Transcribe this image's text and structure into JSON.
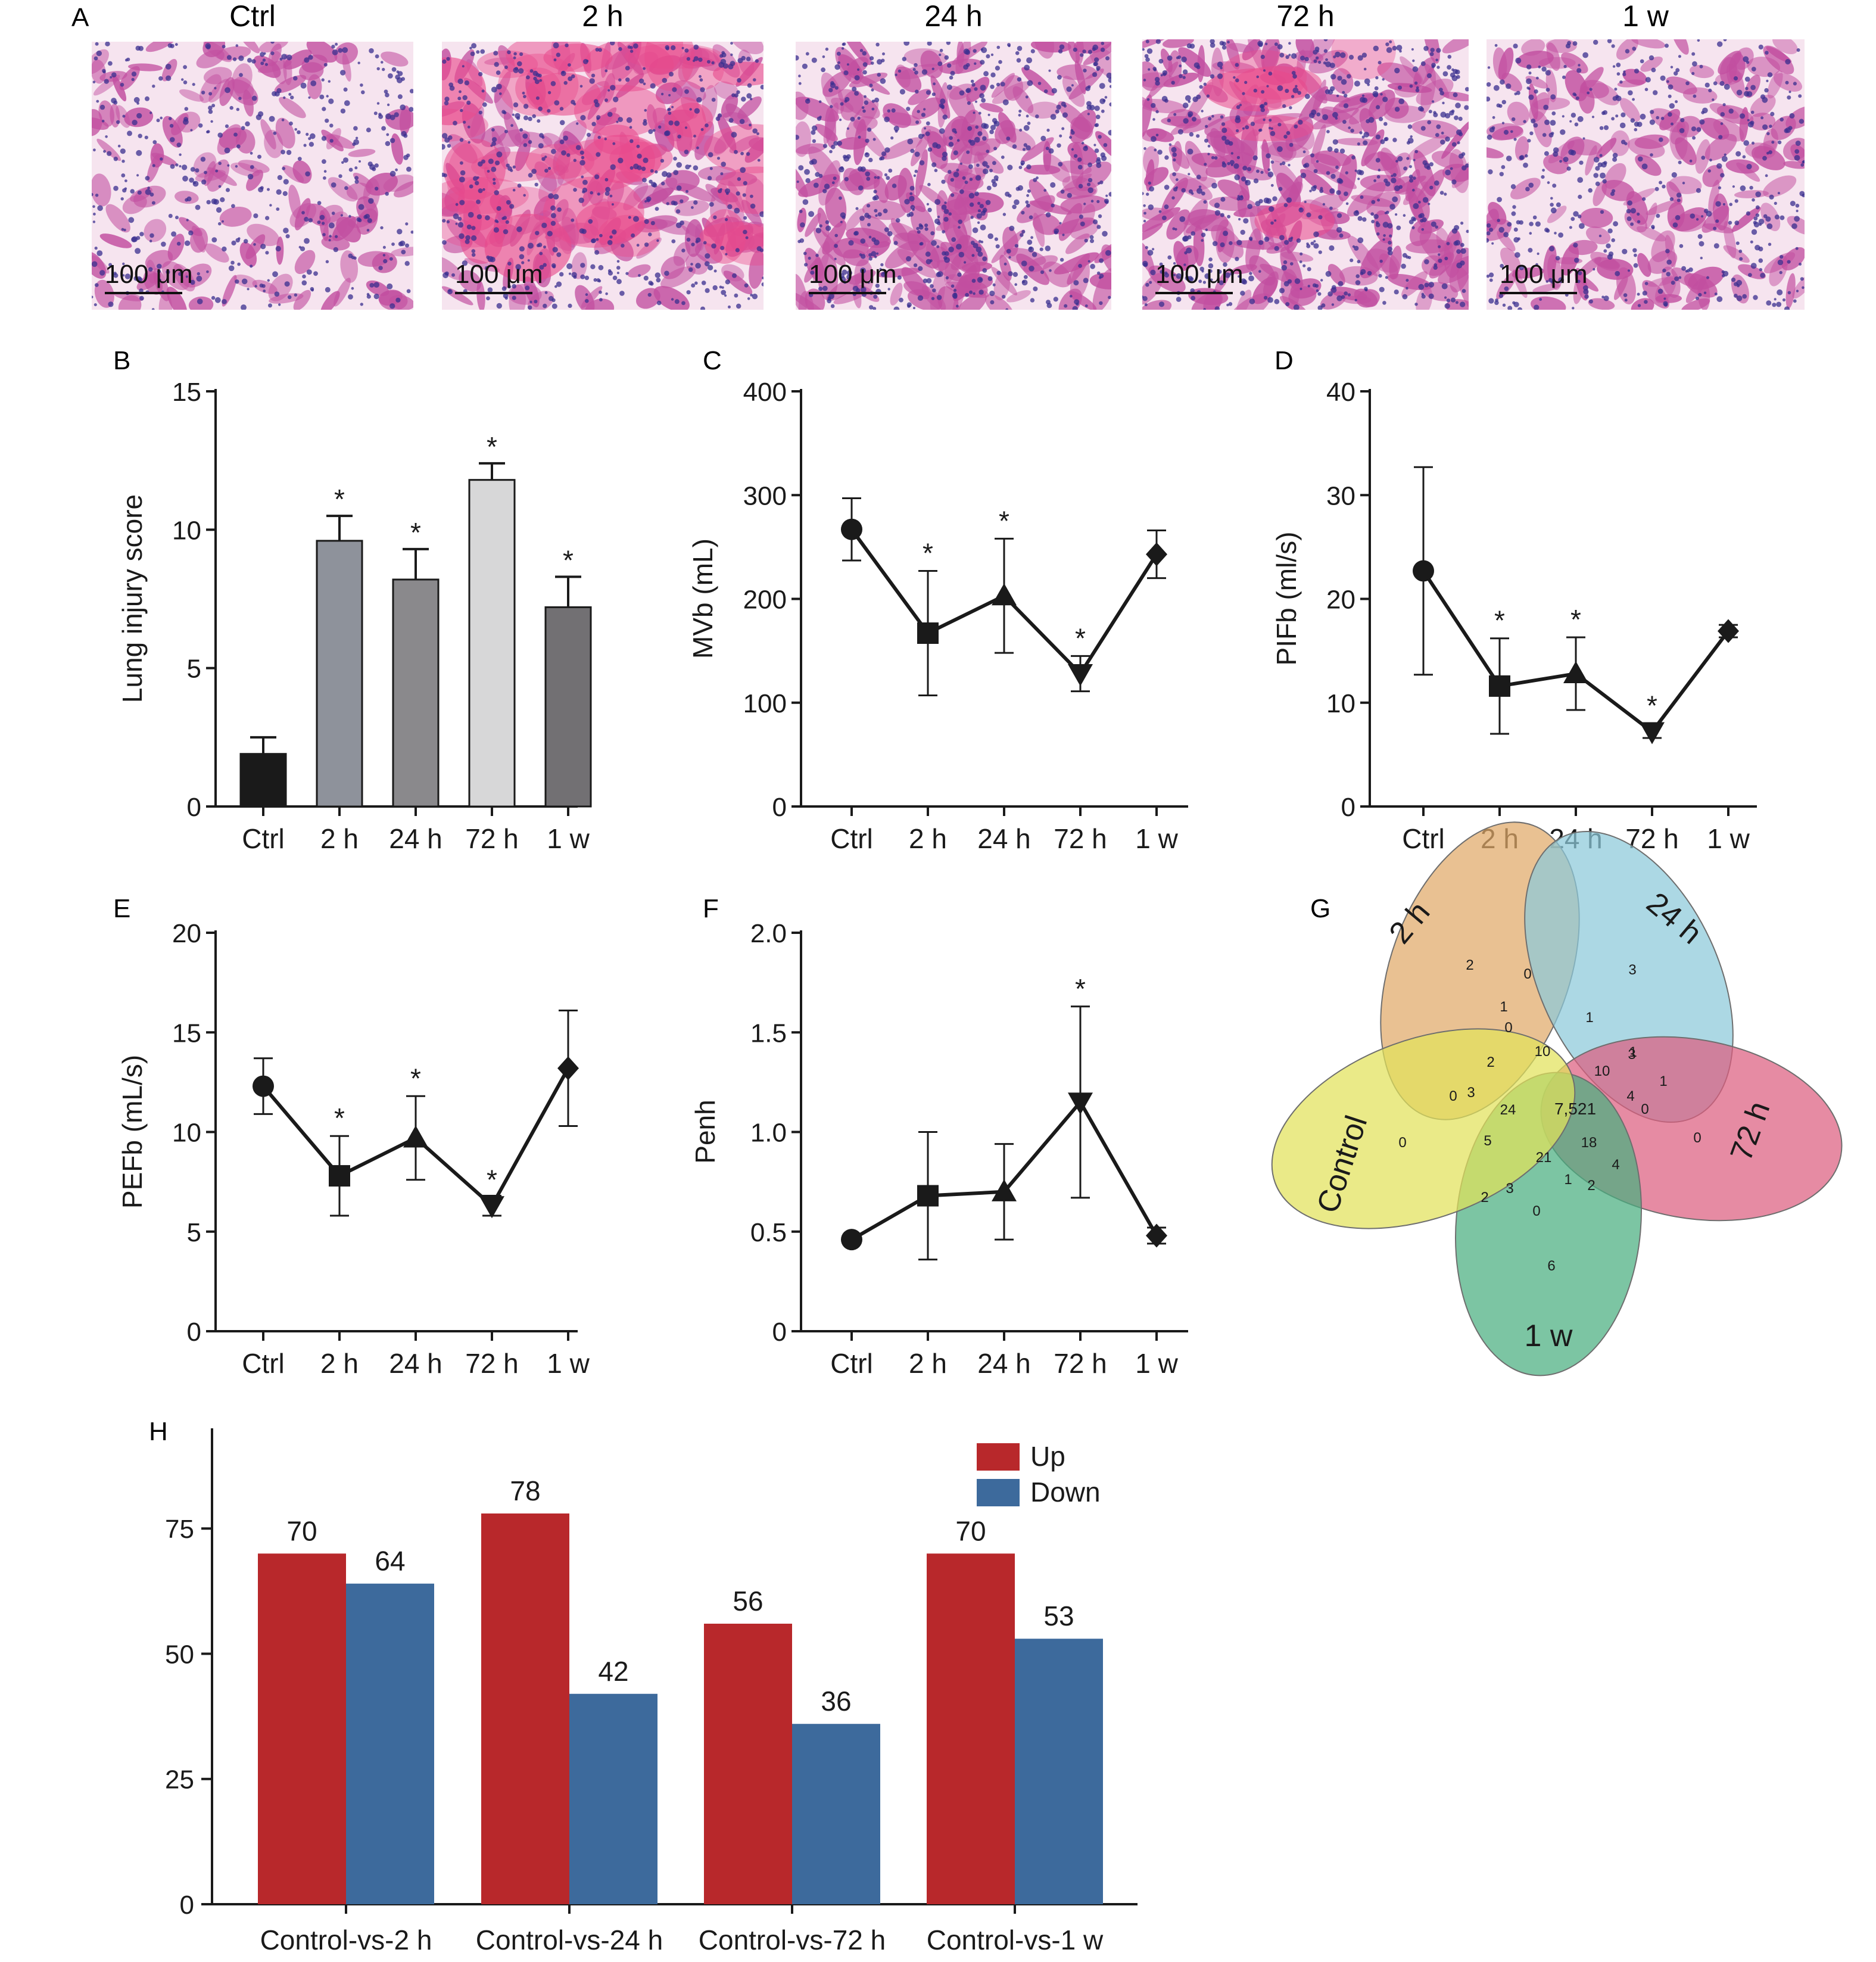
{
  "panel_labels": {
    "a": "A",
    "b": "B",
    "c": "C",
    "d": "D",
    "e": "E",
    "f": "F",
    "g": "G",
    "h": "H"
  },
  "histology": {
    "titles": [
      "Ctrl",
      "2 h",
      "24 h",
      "72 h",
      "1 w"
    ],
    "scale_bar": "100 μm",
    "stain_colors": {
      "background": "#f6e4ef",
      "nuclei": "#3a2f8f",
      "tissue": "#c24fa0",
      "hemorrhage": "#e84a8c"
    }
  },
  "colors": {
    "up": "#b8282b",
    "down": "#3d6a9c",
    "bars_b": [
      "#1a1a1a",
      "#8e929b",
      "#8a898c",
      "#d7d7d8",
      "#727073"
    ],
    "venn": {
      "ctrl": "#e2e25a",
      "h2": "#e0a968",
      "h24": "#8cc9d9",
      "h72": "#dc5e80",
      "w1": "#4aae80"
    }
  },
  "chart_data": [
    {
      "panel": "B",
      "type": "bar",
      "categories": [
        "Ctrl",
        "2 h",
        "24 h",
        "72 h",
        "1 w"
      ],
      "values": [
        1.9,
        9.6,
        8.2,
        11.8,
        7.2
      ],
      "errors": [
        0.6,
        0.9,
        1.1,
        0.6,
        1.1
      ],
      "sig": [
        "",
        "*",
        "*",
        "*",
        "*"
      ],
      "ylabel": "Lung injury score",
      "ylim": [
        0,
        15
      ],
      "yticks": [
        "0",
        "5",
        "10",
        "15"
      ],
      "grid": false
    },
    {
      "panel": "C",
      "type": "line",
      "categories": [
        "Ctrl",
        "2 h",
        "24 h",
        "72 h",
        "1 w"
      ],
      "values": [
        267,
        167,
        203,
        128,
        243
      ],
      "errors": [
        30,
        60,
        55,
        17,
        23
      ],
      "markers": [
        "circle",
        "square",
        "triangle",
        "triangle-down",
        "diamond"
      ],
      "sig": [
        "",
        "*",
        "*",
        "*",
        ""
      ],
      "ylabel": "MVb (mL)",
      "ylim": [
        0,
        400
      ],
      "yticks": [
        "0",
        "100",
        "200",
        "300",
        "400"
      ],
      "grid": false
    },
    {
      "panel": "D",
      "type": "line",
      "categories": [
        "Ctrl",
        "2 h",
        "24 h",
        "72 h",
        "1 w"
      ],
      "values": [
        22.7,
        11.6,
        12.8,
        7.2,
        16.9
      ],
      "errors": [
        10,
        4.6,
        3.5,
        0.6,
        0.6
      ],
      "markers": [
        "circle",
        "square",
        "triangle",
        "triangle-down",
        "diamond"
      ],
      "sig": [
        "",
        "*",
        "*",
        "*",
        ""
      ],
      "ylabel": "PIFb (ml/s)",
      "ylim": [
        0,
        40
      ],
      "yticks": [
        "0",
        "10",
        "20",
        "30",
        "40"
      ],
      "grid": false
    },
    {
      "panel": "E",
      "type": "line",
      "categories": [
        "Ctrl",
        "2 h",
        "24 h",
        "72 h",
        "1 w"
      ],
      "values": [
        12.3,
        7.8,
        9.7,
        6.3,
        13.2
      ],
      "errors": [
        1.4,
        2.0,
        2.1,
        0.5,
        2.9
      ],
      "markers": [
        "circle",
        "square",
        "triangle",
        "triangle-down",
        "diamond"
      ],
      "sig": [
        "",
        "*",
        "*",
        "*",
        ""
      ],
      "ylabel": "PEFb (mL/s)",
      "ylim": [
        0,
        20
      ],
      "yticks": [
        "0",
        "5",
        "10",
        "15",
        "20"
      ],
      "grid": false
    },
    {
      "panel": "F",
      "type": "line",
      "categories": [
        "Ctrl",
        "2 h",
        "24 h",
        "72 h",
        "1 w"
      ],
      "values": [
        0.46,
        0.68,
        0.7,
        1.15,
        0.48
      ],
      "errors": [
        0,
        0.32,
        0.24,
        0.48,
        0.04
      ],
      "markers": [
        "circle",
        "square",
        "triangle",
        "triangle-down",
        "diamond"
      ],
      "sig": [
        "",
        "",
        "",
        "*",
        ""
      ],
      "ylabel": "Penh",
      "ylim": [
        0,
        2.0
      ],
      "yticks": [
        "0",
        "0.5",
        "1.0",
        "1.5",
        "2.0"
      ],
      "grid": false
    },
    {
      "panel": "H",
      "type": "bar",
      "categories": [
        "Control-vs-2 h",
        "Control-vs-24 h",
        "Control-vs-72 h",
        "Control-vs-1 w"
      ],
      "series": [
        {
          "name": "Up",
          "values": [
            70,
            78,
            56,
            70
          ]
        },
        {
          "name": "Down",
          "values": [
            64,
            42,
            36,
            53
          ]
        }
      ],
      "ylim": [
        0,
        95
      ],
      "yticks": [
        "0",
        "25",
        "50",
        "75"
      ],
      "legend": "top-right",
      "grid": false
    }
  ],
  "venn": {
    "sets": [
      "2 h",
      "24 h",
      "72 h",
      "1 w",
      "Control"
    ],
    "counts": [
      "2",
      "3",
      "0",
      "6",
      "0",
      "0",
      "1",
      "1",
      "1",
      "0",
      "1",
      "0",
      "0",
      "2",
      "2",
      "10",
      "10",
      "3",
      "4",
      "18",
      "4",
      "1",
      "2",
      "3",
      "5",
      "21",
      "3",
      "0",
      "24",
      "7,521"
    ]
  }
}
